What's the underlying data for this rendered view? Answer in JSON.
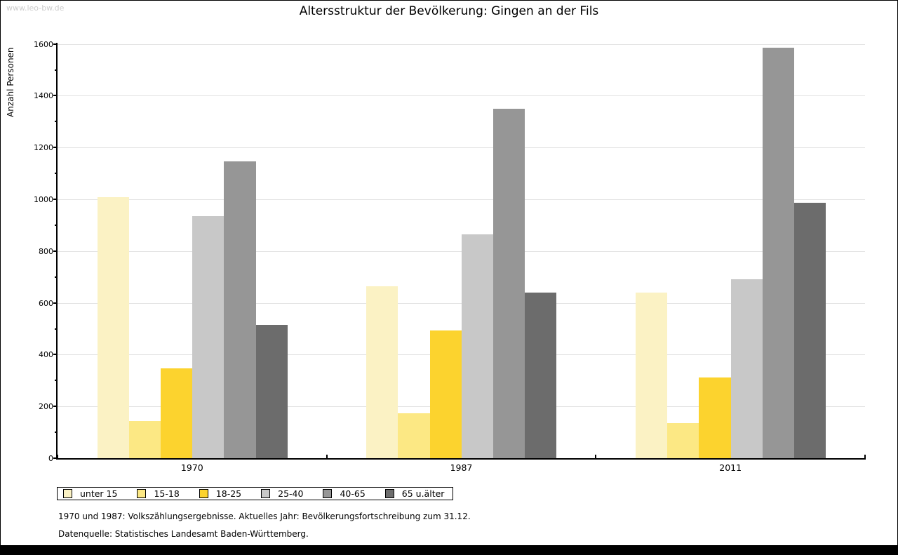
{
  "watermark": "www.leo-bw.de",
  "footnotes": [
    "1970 und 1987: Volkszählungsergebnisse. Aktuelles Jahr: Bevölkerungsfortschreibung zum 31.12.",
    "Datenquelle: Statistisches Landesamt Baden-Württemberg."
  ],
  "chart_data": {
    "type": "bar",
    "title": "Altersstruktur der Bevölkerung: Gingen an der Fils",
    "xlabel": "",
    "ylabel": "Anzahl Personen",
    "categories": [
      "1970",
      "1987",
      "2011"
    ],
    "series": [
      {
        "name": "unter 15",
        "color": "#FBF2C4",
        "values": [
          1008,
          665,
          640
        ]
      },
      {
        "name": "15-18",
        "color": "#FCE884",
        "values": [
          144,
          173,
          135
        ]
      },
      {
        "name": "18-25",
        "color": "#FCD32E",
        "values": [
          347,
          493,
          312
        ]
      },
      {
        "name": "25-40",
        "color": "#C8C8C8",
        "values": [
          936,
          864,
          690
        ]
      },
      {
        "name": "40-65",
        "color": "#969696",
        "values": [
          1147,
          1349,
          1585
        ]
      },
      {
        "name": "65 u.älter",
        "color": "#6C6C6C",
        "values": [
          515,
          640,
          986
        ]
      }
    ],
    "ylim": [
      0,
      1600
    ],
    "ytick_step": 200,
    "yminor_step": 100,
    "grid": "horizontal-major",
    "legend_position": "bottom-left",
    "axis_color": "#000000",
    "gridline_color": "#e3e3e3"
  }
}
